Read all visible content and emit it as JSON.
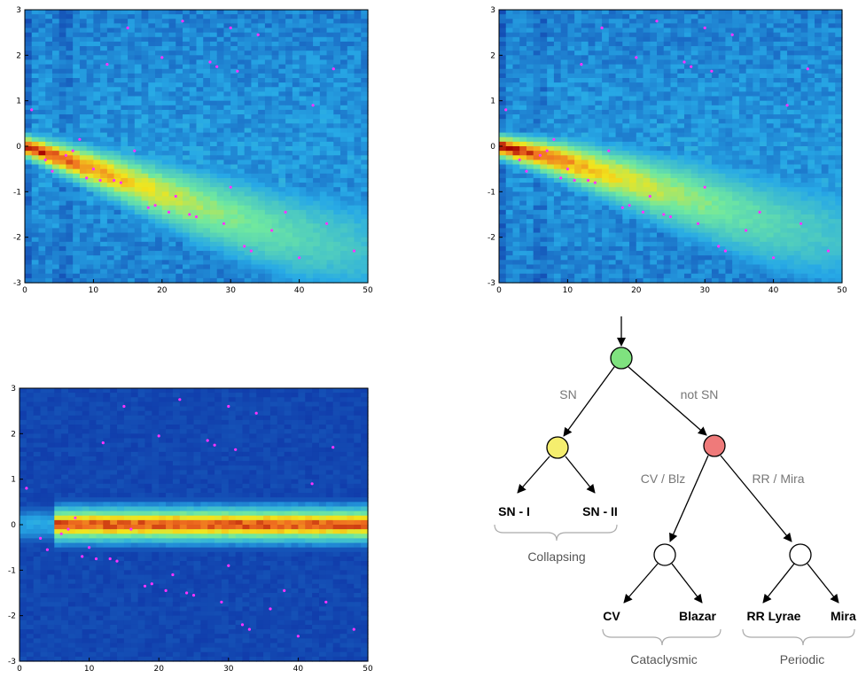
{
  "colors": {
    "heat_low": "#0a1d9a",
    "heat_mid": "#27a9e6",
    "heat_high": "#f2e51c",
    "heat_peak": "#a30000",
    "points": "#ff33ff",
    "node_root": "#7fe27f",
    "node_sn": "#f5ee6e",
    "node_not_sn": "#ef7a7a",
    "node_plain": "#ffffff",
    "text_edge": "#777777"
  },
  "chart_data": [
    {
      "type": "heatmap",
      "xlim": [
        0,
        50
      ],
      "ylim": [
        -3,
        3
      ],
      "xticks": [
        "0",
        "10",
        "20",
        "30",
        "40",
        "50"
      ],
      "yticks": [
        "3",
        "2",
        "1",
        "0",
        "-1",
        "-2",
        "-3"
      ],
      "trend": {
        "x": [
          0,
          10,
          20,
          30,
          40,
          50
        ],
        "y": [
          0,
          -0.5,
          -1.05,
          -1.55,
          -2.0,
          -2.3
        ]
      },
      "points": {
        "x": [
          1,
          3,
          4,
          6,
          7,
          8,
          9,
          10,
          11,
          12,
          13,
          14,
          15,
          16,
          18,
          19,
          20,
          21,
          22,
          23,
          24,
          25,
          27,
          28,
          29,
          30,
          30,
          31,
          32,
          33,
          34,
          36,
          38,
          40,
          42,
          44,
          45,
          48
        ],
        "y": [
          0.8,
          -0.3,
          -0.55,
          -0.2,
          -0.1,
          0.15,
          -0.7,
          -0.5,
          -0.75,
          1.8,
          -0.75,
          -0.8,
          2.6,
          -0.1,
          -1.35,
          -1.3,
          1.95,
          -1.45,
          -1.1,
          2.75,
          -1.5,
          -1.55,
          1.85,
          1.75,
          -1.7,
          2.6,
          -0.9,
          1.65,
          -2.2,
          -2.3,
          2.45,
          -1.85,
          -1.45,
          -2.45,
          0.9,
          -1.7,
          1.7,
          -2.3
        ]
      }
    },
    {
      "type": "heatmap",
      "xlim": [
        0,
        50
      ],
      "ylim": [
        -3,
        3
      ],
      "xticks": [
        "0",
        "10",
        "20",
        "30",
        "40",
        "50"
      ],
      "yticks": [
        "3",
        "2",
        "1",
        "0",
        "-1",
        "-2",
        "-3"
      ],
      "trend": {
        "x": [
          0,
          10,
          20,
          30,
          40,
          50
        ],
        "y": [
          0,
          -0.35,
          -0.8,
          -1.25,
          -1.7,
          -2.0
        ]
      },
      "points": {
        "x": [
          1,
          3,
          4,
          6,
          7,
          8,
          9,
          10,
          11,
          12,
          13,
          14,
          15,
          16,
          18,
          19,
          20,
          21,
          22,
          23,
          24,
          25,
          27,
          28,
          29,
          30,
          30,
          31,
          32,
          33,
          34,
          36,
          38,
          40,
          42,
          44,
          45,
          48
        ],
        "y": [
          0.8,
          -0.3,
          -0.55,
          -0.2,
          -0.1,
          0.15,
          -0.7,
          -0.5,
          -0.75,
          1.8,
          -0.75,
          -0.8,
          2.6,
          -0.1,
          -1.35,
          -1.3,
          1.95,
          -1.45,
          -1.1,
          2.75,
          -1.5,
          -1.55,
          1.85,
          1.75,
          -1.7,
          2.6,
          -0.9,
          1.65,
          -2.2,
          -2.3,
          2.45,
          -1.85,
          -1.45,
          -2.45,
          0.9,
          -1.7,
          1.7,
          -2.3
        ]
      }
    },
    {
      "type": "heatmap",
      "xlim": [
        0,
        50
      ],
      "ylim": [
        -3,
        3
      ],
      "xticks": [
        "0",
        "10",
        "20",
        "30",
        "40",
        "50"
      ],
      "yticks": [
        "3",
        "2",
        "1",
        "0",
        "-1",
        "-2",
        "-3"
      ],
      "trend": {
        "x": [
          0,
          10,
          20,
          30,
          40,
          50
        ],
        "y": [
          0,
          0,
          0,
          0,
          0,
          0
        ]
      },
      "points": {
        "x": [
          1,
          3,
          4,
          6,
          7,
          8,
          9,
          10,
          11,
          12,
          13,
          14,
          15,
          16,
          18,
          19,
          20,
          21,
          22,
          23,
          24,
          25,
          27,
          28,
          29,
          30,
          30,
          31,
          32,
          33,
          34,
          36,
          38,
          40,
          42,
          44,
          45,
          48
        ],
        "y": [
          0.8,
          -0.3,
          -0.55,
          -0.2,
          -0.1,
          0.15,
          -0.7,
          -0.5,
          -0.75,
          1.8,
          -0.75,
          -0.8,
          2.6,
          -0.1,
          -1.35,
          -1.3,
          1.95,
          -1.45,
          -1.1,
          2.75,
          -1.5,
          -1.55,
          1.85,
          1.75,
          -1.7,
          2.6,
          -0.9,
          1.65,
          -2.2,
          -2.3,
          2.45,
          -1.85,
          -1.45,
          -2.45,
          0.9,
          -1.7,
          1.7,
          -2.3
        ]
      }
    }
  ],
  "tree": {
    "edge_sn": "SN",
    "edge_not_sn": "not SN",
    "edge_cv_blz": "CV / Blz",
    "edge_rr_mira": "RR / Mira",
    "leaf_sn1": "SN - I",
    "leaf_sn2": "SN - II",
    "leaf_cv": "CV",
    "leaf_blazar": "Blazar",
    "leaf_rrlyrae": "RR Lyrae",
    "leaf_mira": "Mira",
    "group_collapsing": "Collapsing",
    "group_cataclysmic": "Cataclysmic",
    "group_periodic": "Periodic"
  }
}
